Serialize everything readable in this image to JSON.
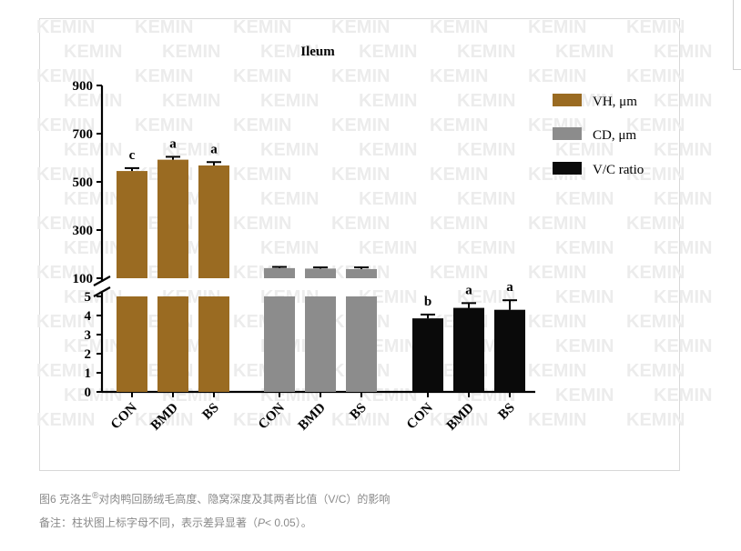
{
  "watermark": "KEMIN",
  "caption": {
    "prefix": "图6 克洛生",
    "registered": "®",
    "rest": "对肉鸭回肠绒毛高度、隐窝深度及其两者比值（V/C）的影响"
  },
  "note": {
    "prefix": "备注：柱状图上标字母不同，表示差异显著（",
    "p": "P",
    "suffix": "< 0.05）。"
  },
  "chart_data": {
    "type": "bar",
    "title": "Ileum",
    "categories": [
      "CON",
      "BMD",
      "BS"
    ],
    "series": [
      {
        "name": "VH, μm",
        "color": "#9a6b22",
        "values": [
          545,
          592,
          568
        ],
        "errors": [
          12,
          12,
          14
        ],
        "letters": [
          "c",
          "a",
          "a"
        ],
        "axis": "upper"
      },
      {
        "name": "CD, μm",
        "color": "#8c8c8c",
        "values": [
          142,
          140,
          138
        ],
        "errors": [
          5,
          5,
          7
        ],
        "letters": [
          "",
          "",
          ""
        ],
        "axis": "upper"
      },
      {
        "name": "V/C ratio",
        "color": "#0a0a0a",
        "values": [
          3.85,
          4.4,
          4.3
        ],
        "errors": [
          0.2,
          0.25,
          0.5
        ],
        "letters": [
          "b",
          "a",
          "a"
        ],
        "axis": "lower"
      }
    ],
    "upper_axis": {
      "ylim": [
        100,
        900
      ],
      "ticks": [
        "900",
        "700",
        "500",
        "300",
        "100"
      ]
    },
    "lower_axis": {
      "ylim": [
        0,
        5
      ],
      "ticks": [
        "5",
        "4",
        "3",
        "2",
        "1",
        "0"
      ]
    },
    "legend_position": "top-right",
    "grid": false
  },
  "colors": {
    "frame_border": "#d8d8d8",
    "caption_text": "#8a8a8a",
    "watermark": "#ececec"
  }
}
